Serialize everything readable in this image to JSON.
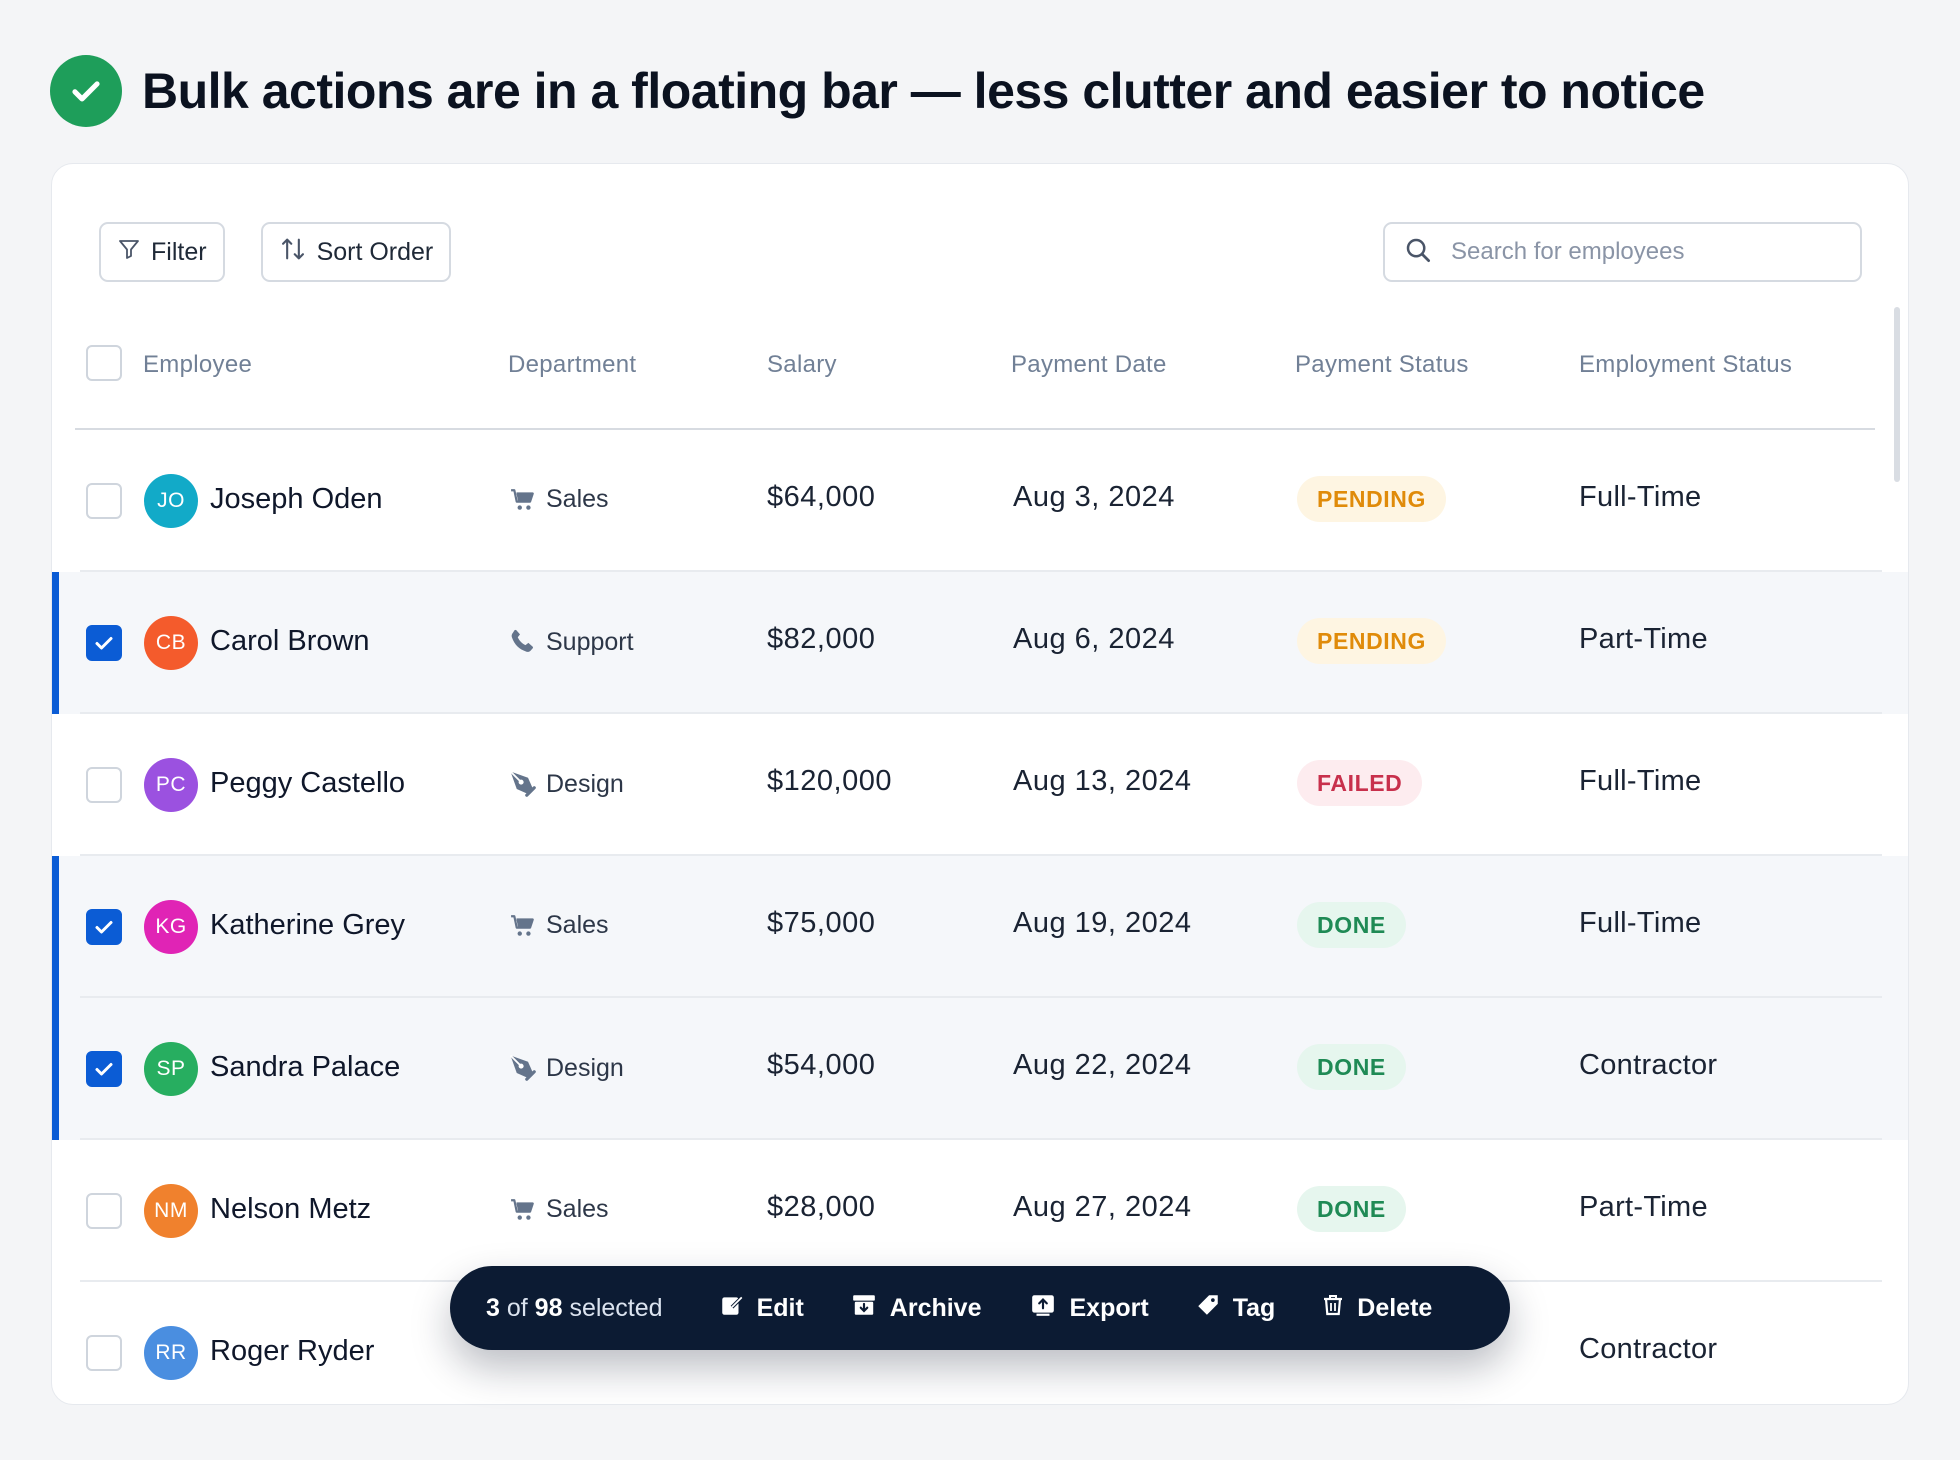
{
  "heading": {
    "text": "Bulk actions are in a floating bar — less clutter and easier to notice"
  },
  "toolbar": {
    "filter_label": "Filter",
    "sort_label": "Sort Order"
  },
  "search": {
    "placeholder": "Search for employees"
  },
  "columns": [
    "Employee",
    "Department",
    "Salary",
    "Payment Date",
    "Payment Status",
    "Employment Status"
  ],
  "rows": [
    {
      "initials": "JO",
      "avatar_color": "#12aac8",
      "name": "Joseph Oden",
      "dept": "Sales",
      "dept_icon": "cart-icon",
      "salary": "$64,000",
      "date": "Aug 3, 2024",
      "status": "PENDING",
      "employment": "Full-Time",
      "selected": false
    },
    {
      "initials": "CB",
      "avatar_color": "#f45b2c",
      "name": "Carol Brown",
      "dept": "Support",
      "dept_icon": "phone-icon",
      "salary": "$82,000",
      "date": "Aug 6, 2024",
      "status": "PENDING",
      "employment": "Part-Time",
      "selected": true
    },
    {
      "initials": "PC",
      "avatar_color": "#9b51e0",
      "name": "Peggy Castello",
      "dept": "Design",
      "dept_icon": "pen-tool-icon",
      "salary": "$120,000",
      "date": "Aug 13, 2024",
      "status": "FAILED",
      "employment": "Full-Time",
      "selected": false
    },
    {
      "initials": "KG",
      "avatar_color": "#e024b5",
      "name": "Katherine Grey",
      "dept": "Sales",
      "dept_icon": "cart-icon",
      "salary": "$75,000",
      "date": "Aug 19, 2024",
      "status": "DONE",
      "employment": "Full-Time",
      "selected": true
    },
    {
      "initials": "SP",
      "avatar_color": "#27ae60",
      "name": "Sandra Palace",
      "dept": "Design",
      "dept_icon": "pen-tool-icon",
      "salary": "$54,000",
      "date": "Aug 22, 2024",
      "status": "DONE",
      "employment": "Contractor",
      "selected": true
    },
    {
      "initials": "NM",
      "avatar_color": "#f0812d",
      "name": "Nelson Metz",
      "dept": "Sales",
      "dept_icon": "cart-icon",
      "salary": "$28,000",
      "date": "Aug 27, 2024",
      "status": "DONE",
      "employment": "Part-Time",
      "selected": false
    },
    {
      "initials": "RR",
      "avatar_color": "#4a8ee0",
      "name": "Roger Ryder",
      "dept": "",
      "dept_icon": "",
      "salary": "",
      "date": "",
      "status": "",
      "employment": "Contractor",
      "selected": false
    }
  ],
  "bulkbar": {
    "selected_count": "3",
    "of_word": "of",
    "total": "98",
    "selected_word": "selected",
    "actions": [
      {
        "label": "Edit",
        "icon": "edit-icon"
      },
      {
        "label": "Archive",
        "icon": "archive-icon"
      },
      {
        "label": "Export",
        "icon": "export-icon"
      },
      {
        "label": "Tag",
        "icon": "tag-icon"
      },
      {
        "label": "Delete",
        "icon": "trash-icon"
      }
    ]
  },
  "colors": {
    "accent": "#0b5cd5",
    "success": "#1e9e5a",
    "bar_bg": "#0c1b33"
  }
}
